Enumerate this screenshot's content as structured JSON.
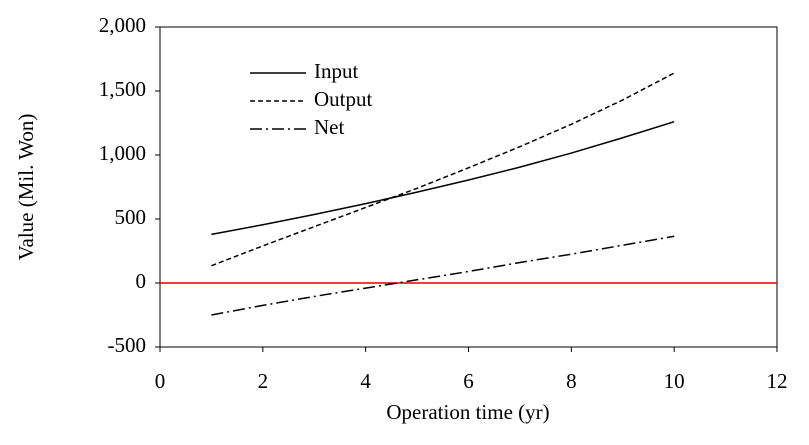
{
  "chart_data": {
    "type": "line",
    "xlabel": "Operation time (yr)",
    "ylabel": "Value (Mil. Won)",
    "x": [
      1,
      2,
      3,
      4,
      5,
      6,
      7,
      8,
      9,
      10
    ],
    "series": [
      {
        "name": "Input",
        "color": "#000000",
        "line_style": "solid",
        "values": [
          380,
          455,
          535,
          620,
          710,
          805,
          905,
          1015,
          1135,
          1260
        ]
      },
      {
        "name": "Output",
        "color": "#000000",
        "line_style": "dashed",
        "values": [
          135,
          290,
          440,
          590,
          740,
          900,
          1065,
          1240,
          1430,
          1640
        ]
      },
      {
        "name": "Net",
        "color": "#000000",
        "line_style": "dashdot",
        "values": [
          -250,
          -175,
          -105,
          -40,
          25,
          90,
          160,
          225,
          295,
          365
        ]
      }
    ],
    "xlim": [
      0,
      12
    ],
    "xticks": [
      0,
      2,
      4,
      6,
      8,
      10,
      12
    ],
    "ylim": [
      -500,
      2000
    ],
    "yticks": [
      -500,
      0,
      500,
      {
        "value": 1000,
        "label": "1,000"
      },
      {
        "value": 1500,
        "label": "1,500"
      },
      {
        "value": 2000,
        "label": "2,000"
      }
    ],
    "reference_line": {
      "value": 0,
      "color": "#e00000"
    },
    "legend": "upper left",
    "grid": false
  }
}
